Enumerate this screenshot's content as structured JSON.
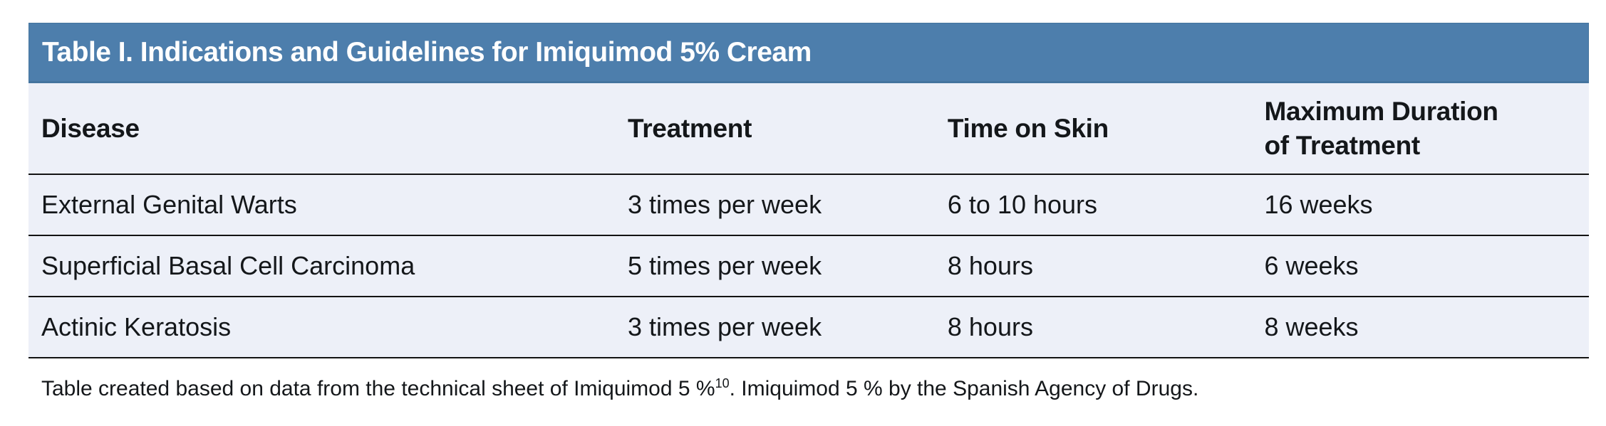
{
  "figure": {
    "title": "Table I. Indications and Guidelines for Imiquimod 5% Cream",
    "columns": [
      "Disease",
      "Treatment",
      "Time on Skin",
      "Maximum Duration of Treatment"
    ],
    "rows": [
      {
        "disease": "External Genital Warts",
        "treatment": "3 times per week",
        "time_on_skin": "6 to 10 hours",
        "max_duration": "16 weeks"
      },
      {
        "disease": "Superficial Basal Cell Carcinoma",
        "treatment": "5 times per week",
        "time_on_skin": "8 hours",
        "max_duration": "6 weeks"
      },
      {
        "disease": "Actinic Keratosis",
        "treatment": "3 times per week",
        "time_on_skin": "8 hours",
        "max_duration": "8 weeks"
      }
    ],
    "footnote": {
      "text_before_sup": "Table created based on data from the technical sheet of Imiquimod 5 %",
      "superscript": "10",
      "text_after_sup": ". Imiquimod 5 % by the Spanish Agency of Drugs."
    },
    "colors": {
      "title_bar_bg": "#4d7eac",
      "title_bar_border": "#44749e",
      "title_text": "#ffffff",
      "table_bg": "#edf0f8",
      "rule_color": "#131313",
      "body_text": "#14171a",
      "page_bg": "#ffffff"
    }
  }
}
